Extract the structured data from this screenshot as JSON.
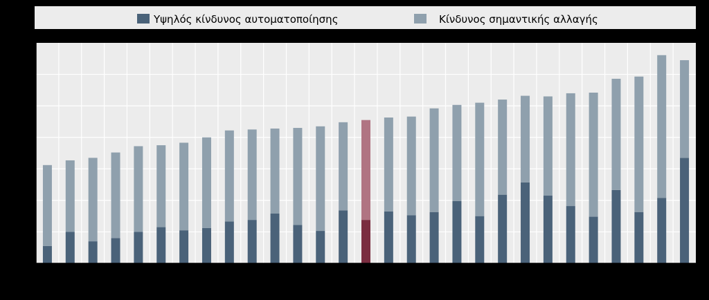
{
  "chart_data": {
    "type": "bar",
    "stacked": true,
    "legend_position": "top",
    "grid": true,
    "ylim": [
      0,
      70
    ],
    "series": [
      {
        "name": "Υψηλός κίνδυνος αυτοματοποίησης",
        "color": "#4a6279",
        "values": [
          5.5,
          10,
          7,
          8,
          10,
          11.5,
          10.5,
          11.2,
          13.3,
          13.8,
          15.8,
          12.2,
          10.3,
          16.8,
          13.8,
          16.5,
          15.3,
          16.3,
          19.8,
          15,
          21.8,
          25.7,
          21.5,
          18.2,
          14.8,
          23.3,
          16.3,
          20.8,
          33.5
        ]
      },
      {
        "name": "Κίνδυνος σημαντικής αλλαγής",
        "color": "#8fa0ad",
        "values": [
          25.7,
          22.7,
          26.5,
          27.2,
          27.2,
          26,
          27.8,
          28.8,
          28.9,
          28.7,
          27,
          30.8,
          33.2,
          28,
          31.7,
          29.8,
          31.3,
          32.9,
          30.5,
          36,
          30.2,
          27.5,
          31.5,
          35.8,
          39.4,
          35.3,
          43,
          45.3,
          31
        ]
      }
    ],
    "highlight": {
      "index": 14,
      "colors": [
        "#7a2d40",
        "#b07482"
      ]
    }
  }
}
